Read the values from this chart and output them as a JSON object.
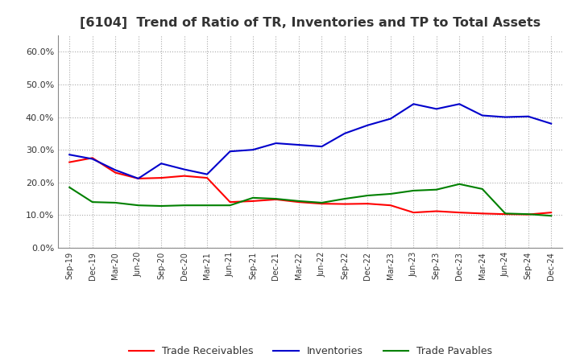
{
  "title": "[6104]  Trend of Ratio of TR, Inventories and TP to Total Assets",
  "x_labels": [
    "Sep-19",
    "Dec-19",
    "Mar-20",
    "Jun-20",
    "Sep-20",
    "Dec-20",
    "Mar-21",
    "Jun-21",
    "Sep-21",
    "Dec-21",
    "Mar-22",
    "Jun-22",
    "Sep-22",
    "Dec-22",
    "Mar-23",
    "Jun-23",
    "Sep-23",
    "Dec-23",
    "Mar-24",
    "Jun-24",
    "Sep-24",
    "Dec-24"
  ],
  "trade_receivables": [
    0.262,
    0.275,
    0.23,
    0.212,
    0.214,
    0.22,
    0.214,
    0.14,
    0.143,
    0.148,
    0.14,
    0.135,
    0.134,
    0.135,
    0.13,
    0.108,
    0.112,
    0.108,
    0.105,
    0.103,
    0.102,
    0.108
  ],
  "inventories": [
    0.285,
    0.272,
    0.238,
    0.212,
    0.258,
    0.24,
    0.225,
    0.295,
    0.3,
    0.32,
    0.315,
    0.31,
    0.35,
    0.375,
    0.395,
    0.44,
    0.425,
    0.44,
    0.405,
    0.4,
    0.402,
    0.38
  ],
  "trade_payables": [
    0.185,
    0.14,
    0.138,
    0.13,
    0.128,
    0.13,
    0.13,
    0.13,
    0.153,
    0.15,
    0.143,
    0.138,
    0.15,
    0.16,
    0.165,
    0.175,
    0.178,
    0.195,
    0.18,
    0.105,
    0.103,
    0.098
  ],
  "tr_color": "#FF0000",
  "inv_color": "#0000CC",
  "tp_color": "#008000",
  "ylim": [
    0.0,
    0.65
  ],
  "yticks": [
    0.0,
    0.1,
    0.2,
    0.3,
    0.4,
    0.5,
    0.6
  ],
  "background_color": "#FFFFFF",
  "plot_bg_color": "#FFFFFF",
  "grid_color": "#AAAAAA",
  "title_fontsize": 11.5,
  "title_color": "#333333",
  "legend_labels": [
    "Trade Receivables",
    "Inventories",
    "Trade Payables"
  ]
}
